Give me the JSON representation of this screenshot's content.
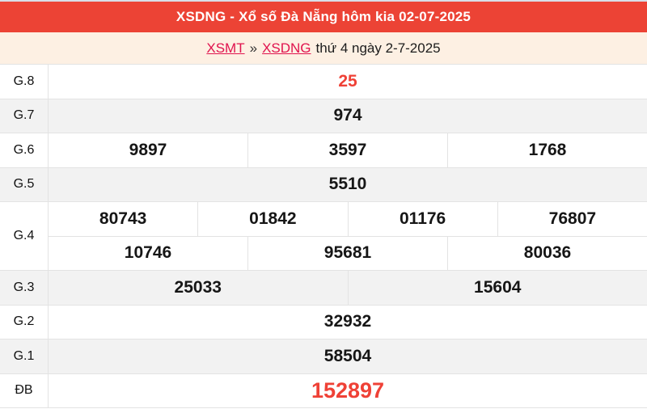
{
  "header": {
    "title": "XSDNG - Xổ số Đà Nẵng hôm kia 02-07-2025"
  },
  "breadcrumb": {
    "link_region": "XSMT",
    "separator": "»",
    "link_province": "XSDNG",
    "suffix": "thứ 4 ngày 2-7-2025"
  },
  "colors": {
    "header_bg": "#ec4335",
    "breadcrumb_bg": "#fdf0e3",
    "link_red": "#e0134e",
    "highlight_red": "#ef4136",
    "stripe_gray": "#f2f2f2",
    "border_gray": "#e3e3e3"
  },
  "results": {
    "rows": [
      {
        "label": "G.8",
        "highlight": true,
        "big": false,
        "groups": [
          [
            "25"
          ]
        ]
      },
      {
        "label": "G.7",
        "highlight": false,
        "big": false,
        "groups": [
          [
            "974"
          ]
        ]
      },
      {
        "label": "G.6",
        "highlight": false,
        "big": false,
        "groups": [
          [
            "9897",
            "3597",
            "1768"
          ]
        ]
      },
      {
        "label": "G.5",
        "highlight": false,
        "big": false,
        "groups": [
          [
            "5510"
          ]
        ]
      },
      {
        "label": "G.4",
        "highlight": false,
        "big": false,
        "groups": [
          [
            "80743",
            "01842",
            "01176",
            "76807"
          ],
          [
            "10746",
            "95681",
            "80036"
          ]
        ]
      },
      {
        "label": "G.3",
        "highlight": false,
        "big": false,
        "groups": [
          [
            "25033",
            "15604"
          ]
        ]
      },
      {
        "label": "G.2",
        "highlight": false,
        "big": false,
        "groups": [
          [
            "32932"
          ]
        ]
      },
      {
        "label": "G.1",
        "highlight": false,
        "big": false,
        "groups": [
          [
            "58504"
          ]
        ]
      },
      {
        "label": "ĐB",
        "highlight": true,
        "big": true,
        "groups": [
          [
            "152897"
          ]
        ]
      }
    ]
  }
}
